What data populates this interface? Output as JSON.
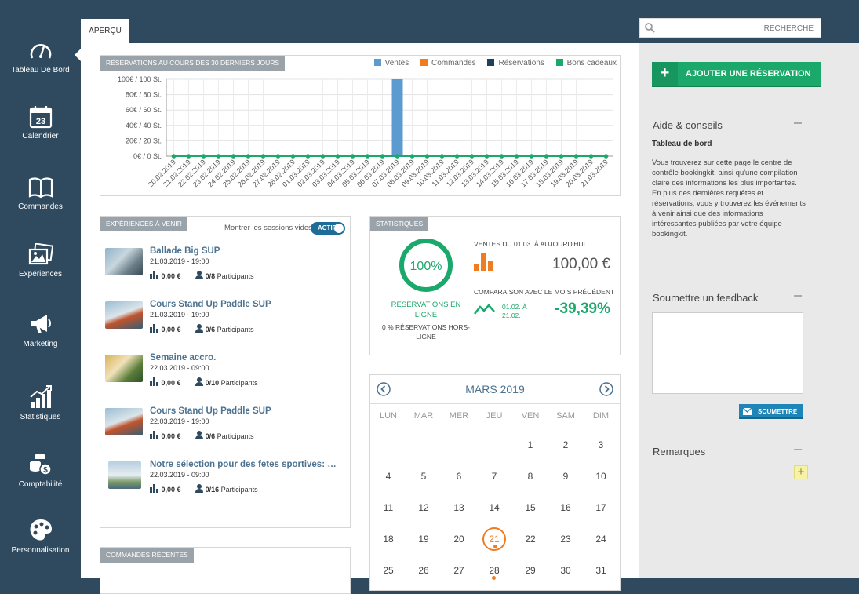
{
  "sidebar": {
    "items": [
      {
        "label": "Tableau De Bord",
        "icon": "gauge-icon"
      },
      {
        "label": "Calendrier",
        "icon": "calendar-icon",
        "badge": "23"
      },
      {
        "label": "Commandes",
        "icon": "book-icon"
      },
      {
        "label": "Expériences",
        "icon": "photos-icon"
      },
      {
        "label": "Marketing",
        "icon": "megaphone-icon"
      },
      {
        "label": "Statistiques",
        "icon": "chart-icon"
      },
      {
        "label": "Comptabilité",
        "icon": "coins-icon"
      },
      {
        "label": "Personnalisation",
        "icon": "palette-icon"
      }
    ]
  },
  "header": {
    "tab": "APERÇU",
    "search_label": "RECHERCHE"
  },
  "reservations_chart": {
    "title": "RÉSERVATIONS AU COURS DES 30 DERNIERS JOURS",
    "legend": [
      "Ventes",
      "Commandes",
      "Réservations",
      "Bons cadeaux"
    ]
  },
  "chart_data": {
    "type": "bar",
    "title": "RÉSERVATIONS AU COURS DES 30 DERNIERS JOURS",
    "categories": [
      "20.02.2019",
      "21.02.2019",
      "22.02.2019",
      "23.02.2019",
      "24.02.2019",
      "25.02.2019",
      "26.02.2019",
      "27.02.2019",
      "28.02.2019",
      "01.03.2019",
      "02.03.2019",
      "03.03.2019",
      "04.03.2019",
      "05.03.2019",
      "06.03.2019",
      "07.03.2019",
      "08.03.2019",
      "09.03.2019",
      "10.03.2019",
      "11.03.2019",
      "12.03.2019",
      "13.03.2019",
      "14.03.2019",
      "15.03.2019",
      "16.03.2019",
      "17.03.2019",
      "18.03.2019",
      "19.03.2019",
      "20.03.2019",
      "21.03.2019"
    ],
    "yticks": [
      "100€ / 100 St.",
      "80€ / 80 St.",
      "60€ / 60 St.",
      "40€ / 40 St.",
      "20€ / 20 St.",
      "0€ / 0 St."
    ],
    "ylim": [
      0,
      100
    ],
    "series": [
      {
        "name": "Ventes",
        "color": "#5b9bd0",
        "values": [
          0,
          0,
          0,
          0,
          0,
          0,
          0,
          0,
          0,
          0,
          0,
          0,
          0,
          0,
          0,
          100,
          0,
          0,
          0,
          0,
          0,
          0,
          0,
          0,
          0,
          0,
          0,
          0,
          0,
          0
        ]
      },
      {
        "name": "Commandes",
        "color": "#f07c21",
        "values": [
          0,
          0,
          0,
          0,
          0,
          0,
          0,
          0,
          0,
          0,
          0,
          0,
          0,
          0,
          0,
          0,
          0,
          0,
          0,
          0,
          0,
          0,
          0,
          0,
          0,
          0,
          0,
          0,
          0,
          0
        ]
      },
      {
        "name": "Réservations",
        "color": "#1f3f5a",
        "values": [
          0,
          0,
          0,
          0,
          0,
          0,
          0,
          0,
          0,
          0,
          0,
          0,
          0,
          0,
          0,
          0,
          0,
          0,
          0,
          0,
          0,
          0,
          0,
          0,
          0,
          0,
          0,
          0,
          0,
          0
        ]
      },
      {
        "name": "Bons cadeaux",
        "color": "#1ba86b",
        "values": [
          0,
          0,
          0,
          0,
          0,
          0,
          0,
          0,
          0,
          0,
          0,
          0,
          0,
          0,
          0,
          0,
          0,
          0,
          0,
          0,
          0,
          0,
          0,
          0,
          0,
          0,
          0,
          0,
          0,
          0
        ]
      }
    ],
    "grid": true,
    "legend_position": "top-right"
  },
  "experiences": {
    "title": "EXPÉRIENCES À VENIR",
    "toggle_label": "Montrer les sessions vides",
    "toggle_state": "ACTIF",
    "items": [
      {
        "title": "Ballade Big SUP",
        "date": "21.03.2019 - 19:00",
        "amount": "0,00 €",
        "participants": "0/8",
        "participants_label": "Participants"
      },
      {
        "title": "Cours Stand Up Paddle SUP",
        "date": "21.03.2019 - 19:00",
        "amount": "0,00 €",
        "participants": "0/6",
        "participants_label": "Participants"
      },
      {
        "title": "Semaine accro.",
        "date": "22.03.2019 - 09:00",
        "amount": "0,00 €",
        "participants": "0/10",
        "participants_label": "Participants"
      },
      {
        "title": "Cours Stand Up Paddle SUP",
        "date": "22.03.2019 - 19:00",
        "amount": "0,00 €",
        "participants": "0/6",
        "participants_label": "Participants"
      },
      {
        "title": "Notre sélection pour des fetes sportives: Canoë,",
        "date": "22.03.2019 - 09:00",
        "amount": "0,00 €",
        "participants": "0/16",
        "participants_label": "Participants"
      }
    ]
  },
  "recent_orders": {
    "title": "COMMANDES RÉCENTES"
  },
  "statistics": {
    "title": "STATISTIQUES",
    "online_percent": "100%",
    "online_fraction": 1.0,
    "online_label": "RÉSERVATIONS EN LIGNE",
    "offline_label": "0 % RÉSERVATIONS HORS-LIGNE",
    "sales_label": "VENTES DU 01.03. À AUJOURD'HUI",
    "sales_value": "100,00 €",
    "compare_label": "COMPARAISON AVEC LE MOIS PRÉCÉDENT",
    "compare_range": "01.02. À 21.02.",
    "compare_value": "-39,39%"
  },
  "calendar": {
    "month": "MARS 2019",
    "weekdays": [
      "LUN",
      "MAR",
      "MER",
      "JEU",
      "VEN",
      "SAM",
      "DIM"
    ],
    "weeks": [
      [
        "",
        "",
        "",
        "",
        "1",
        "2",
        "3"
      ],
      [
        "4",
        "5",
        "6",
        "7",
        "8",
        "9",
        "10"
      ],
      [
        "11",
        "12",
        "13",
        "14",
        "15",
        "16",
        "17"
      ],
      [
        "18",
        "19",
        "20",
        "21",
        "22",
        "23",
        "24"
      ],
      [
        "25",
        "26",
        "27",
        "28",
        "29",
        "30",
        "31"
      ]
    ],
    "today": "21",
    "event_day": "28"
  },
  "right_panel": {
    "add_button": "AJOUTER UNE RÉSERVATION",
    "help_title": "Aide & conseils",
    "help_subtitle": "Tableau de bord",
    "help_text": "Vous trouverez sur cette page le centre de contrôle bookingkit, ainsi qu'une compilation claire des informations les plus importantes. En plus des dernières requêtes et réservations, vous y trouverez les événements à venir ainsi que des informations intéressantes publiées par votre équipe bookingkit.",
    "feedback_title": "Soumettre un feedback",
    "feedback_value": "",
    "submit_label": "SOUMETTRE",
    "remarks_title": "Remarques"
  }
}
